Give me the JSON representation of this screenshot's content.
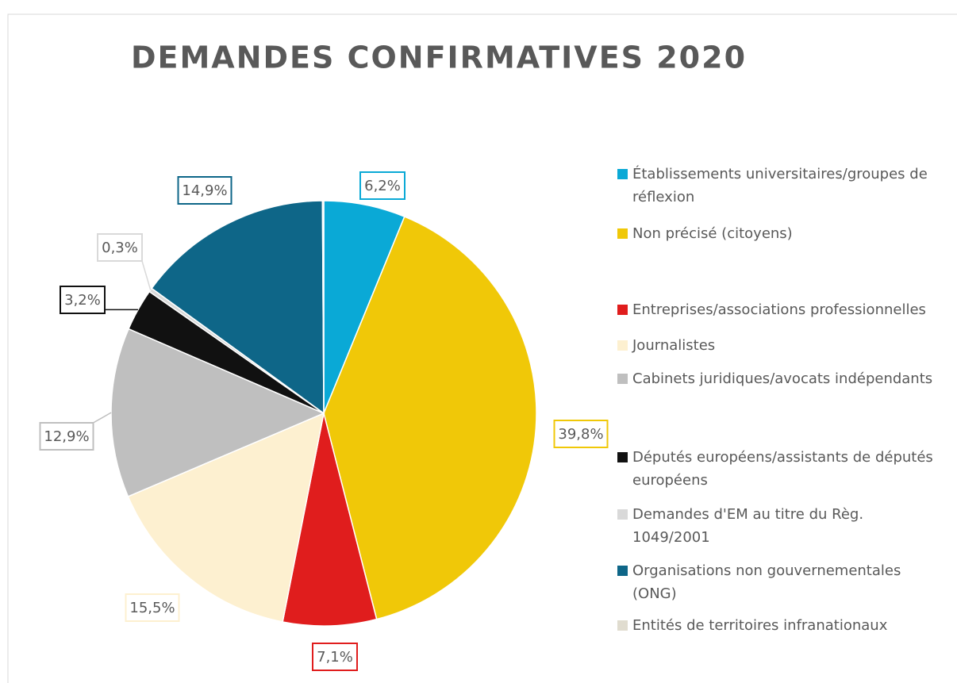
{
  "chart_data": {
    "type": "pie",
    "title": "DEMANDES CONFIRMATIVES 2020",
    "categories": [
      "Établissements universitaires/groupes de réflexion",
      "Non précisé (citoyens)",
      "Entreprises/associations professionnelles",
      "Journalistes",
      "Cabinets juridiques/avocats indépendants",
      "Députés européens/assistants de députés européens",
      "Demandes d'EM au titre du Règ. 1049/2001",
      "Organisations non gouvernementales (ONG)",
      "Entités de territoires infranationaux"
    ],
    "values": [
      6.2,
      39.8,
      7.1,
      15.5,
      12.9,
      3.2,
      0.3,
      14.9,
      0.1
    ],
    "value_labels": [
      "6,2%",
      "39,8%",
      "7,1%",
      "15,5%",
      "12,9%",
      "3,2%",
      "0,3%",
      "14,9%",
      null
    ],
    "colors": [
      "#0aa9d6",
      "#f0c808",
      "#e01d1d",
      "#fdf0d0",
      "#bfbfbf",
      "#111111",
      "#d9d9d9",
      "#0e6688",
      "#e0dccf"
    ],
    "legend": "right"
  }
}
